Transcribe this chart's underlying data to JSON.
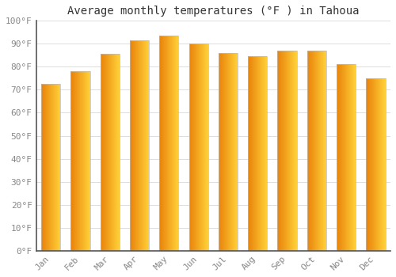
{
  "title": "Average monthly temperatures (°F ) in Tahoua",
  "months": [
    "Jan",
    "Feb",
    "Mar",
    "Apr",
    "May",
    "Jun",
    "Jul",
    "Aug",
    "Sep",
    "Oct",
    "Nov",
    "Dec"
  ],
  "values": [
    72.5,
    78,
    85.5,
    91.5,
    93.5,
    90,
    86,
    84.5,
    87,
    87,
    81,
    75
  ],
  "ylim": [
    0,
    100
  ],
  "yticks": [
    0,
    10,
    20,
    30,
    40,
    50,
    60,
    70,
    80,
    90,
    100
  ],
  "ytick_labels": [
    "0°F",
    "10°F",
    "20°F",
    "30°F",
    "40°F",
    "50°F",
    "60°F",
    "70°F",
    "80°F",
    "90°F",
    "100°F"
  ],
  "background_color": "#ffffff",
  "grid_color": "#dddddd",
  "title_fontsize": 10,
  "tick_fontsize": 8,
  "bar_width": 0.65,
  "bar_color_left": "#E8820A",
  "bar_color_right": "#FFD050",
  "bar_edge_color": "#BBBBBB",
  "axis_color": "#888888",
  "tick_color": "#888888"
}
